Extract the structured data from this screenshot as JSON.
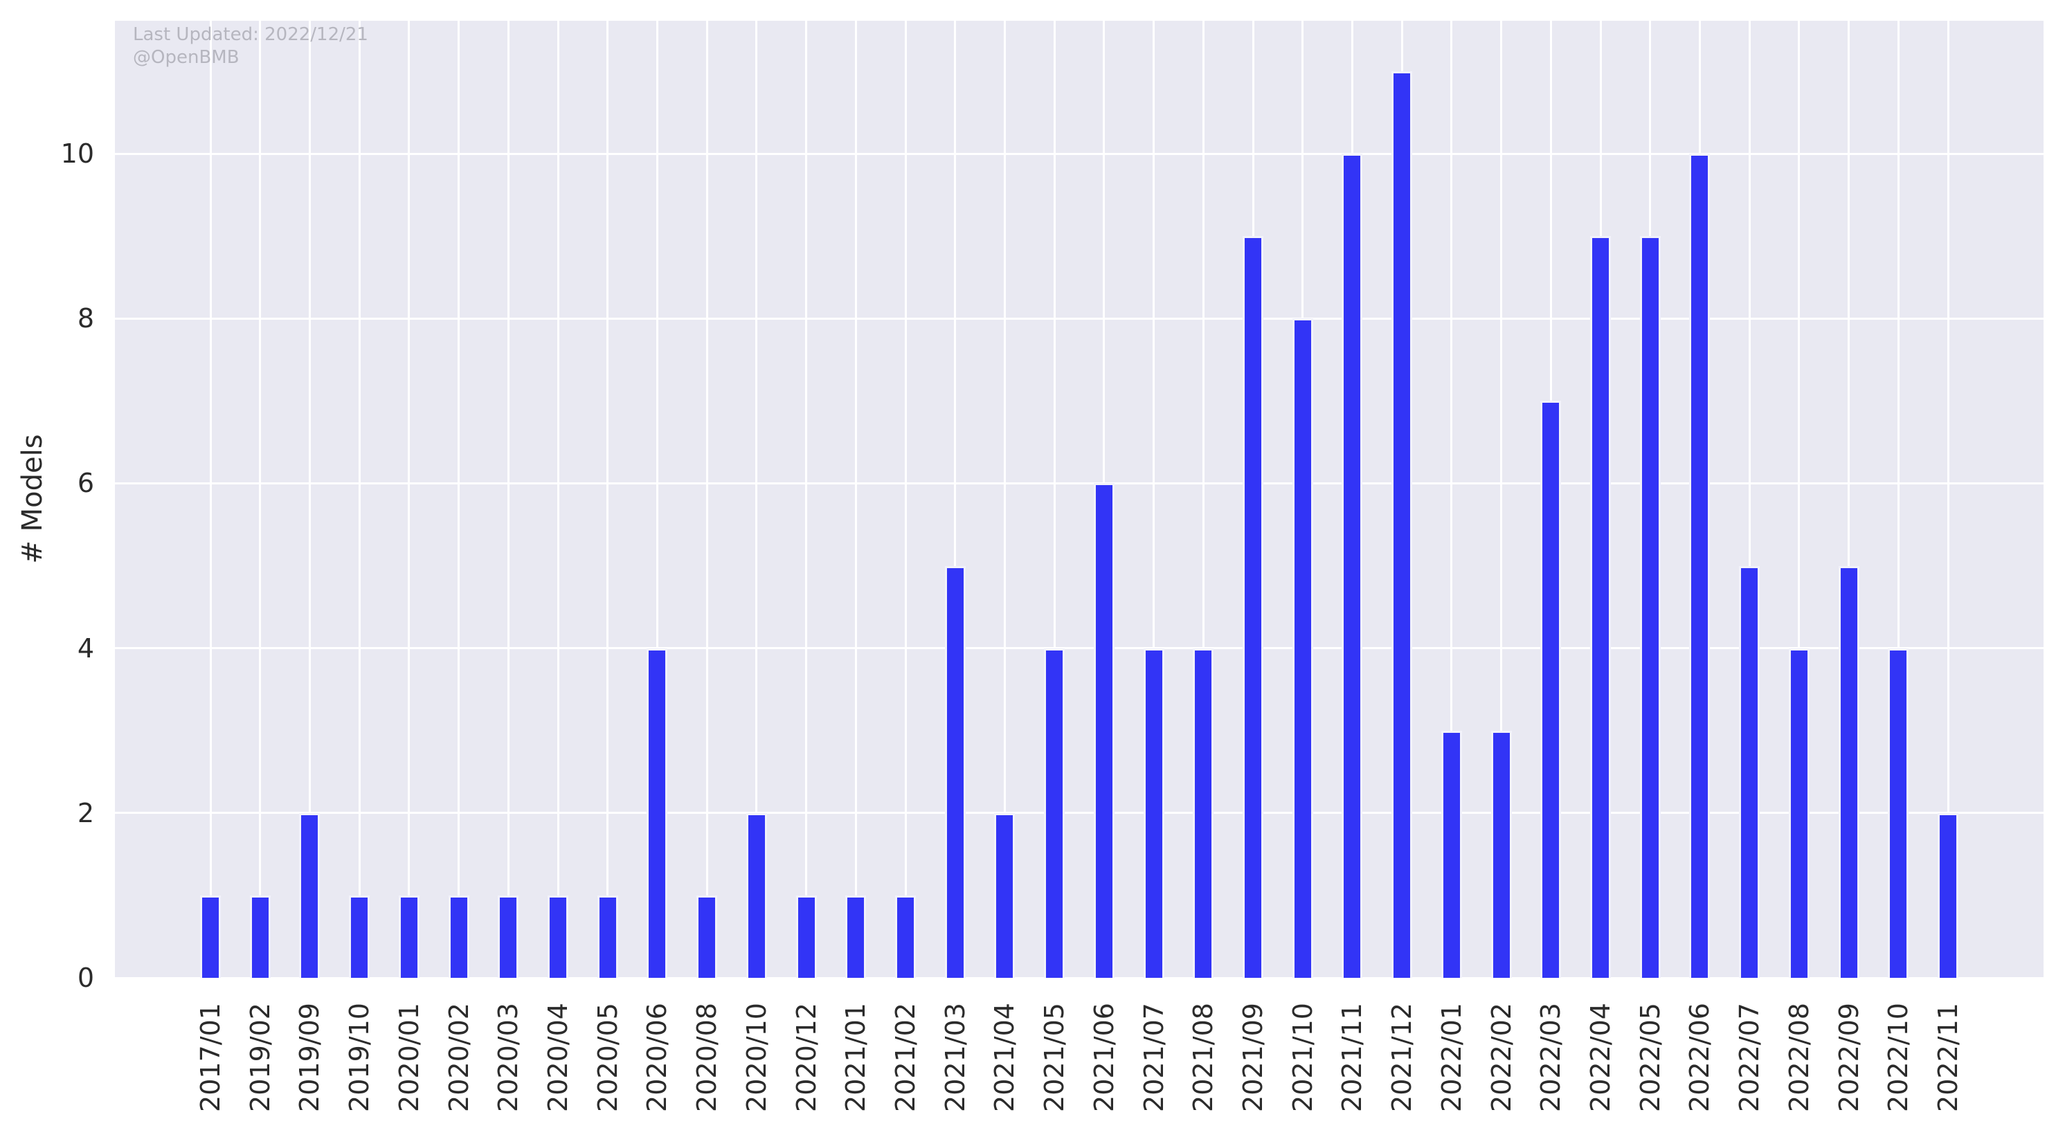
{
  "annotations": {
    "last_updated": "Last Updated: 2022/12/21",
    "handle": "@OpenBMB"
  },
  "chart_data": {
    "type": "bar",
    "title": "",
    "xlabel": "",
    "ylabel": "# Models",
    "categories": [
      "2017/01",
      "2019/02",
      "2019/09",
      "2019/10",
      "2020/01",
      "2020/02",
      "2020/03",
      "2020/04",
      "2020/05",
      "2020/06",
      "2020/08",
      "2020/10",
      "2020/12",
      "2021/01",
      "2021/02",
      "2021/03",
      "2021/04",
      "2021/05",
      "2021/06",
      "2021/07",
      "2021/08",
      "2021/09",
      "2021/10",
      "2021/11",
      "2021/12",
      "2022/01",
      "2022/02",
      "2022/03",
      "2022/04",
      "2022/05",
      "2022/06",
      "2022/07",
      "2022/08",
      "2022/09",
      "2022/10",
      "2022/11"
    ],
    "values": [
      1,
      1,
      2,
      1,
      1,
      1,
      1,
      1,
      1,
      4,
      1,
      2,
      1,
      1,
      1,
      5,
      2,
      4,
      6,
      4,
      4,
      9,
      8,
      10,
      11,
      3,
      3,
      7,
      9,
      9,
      10,
      5,
      4,
      5,
      4,
      2
    ],
    "yticks": [
      0,
      2,
      4,
      6,
      8,
      10
    ],
    "ylim": [
      0,
      11.6
    ],
    "grid": true,
    "legend": null,
    "colors": {
      "bar": "#3234f6",
      "bar_edge": "#f2f2fa",
      "plot_background": "#e9e9f2",
      "gridline": "#ffffff",
      "tick_text": "#2b2b2b",
      "annotation_text": "#b6b6bf",
      "page_background": "#ffffff"
    }
  }
}
